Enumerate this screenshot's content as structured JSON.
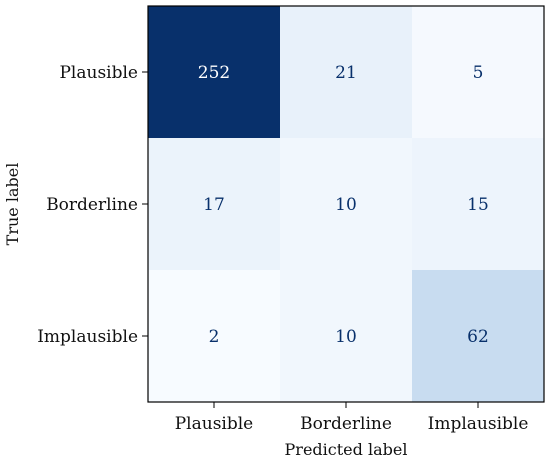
{
  "chart_data": {
    "type": "heatmap",
    "title": "",
    "xlabel": "Predicted label",
    "ylabel": "True label",
    "x_categories": [
      "Plausible",
      "Borderline",
      "Implausible"
    ],
    "y_categories": [
      "Plausible",
      "Borderline",
      "Implausible"
    ],
    "values": [
      [
        252,
        21,
        5
      ],
      [
        17,
        10,
        15
      ],
      [
        2,
        10,
        62
      ]
    ],
    "colormap": "Blues",
    "color_min": "#f7fbff",
    "color_max": "#08306b",
    "text_color_light": "#ffffff",
    "text_color_dark": "#08306b",
    "grid": false
  }
}
